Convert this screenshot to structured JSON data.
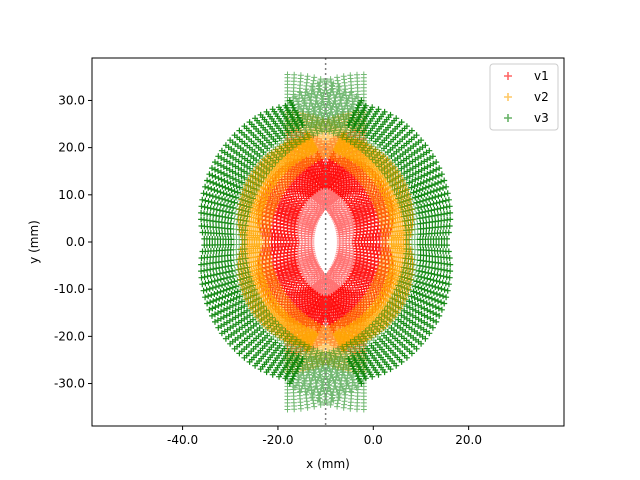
{
  "chart_data": {
    "type": "scatter",
    "title": "",
    "xlabel": "x (mm)",
    "ylabel": "y (mm)",
    "xlim": [
      -59,
      40
    ],
    "ylim": [
      -39,
      39
    ],
    "xticks": [
      -40,
      -20,
      0,
      20
    ],
    "yticks": [
      -30,
      -20,
      -10,
      0,
      10,
      20,
      30
    ],
    "xtick_labels": [
      "-40.0",
      "-20.0",
      "0.0",
      "20.0"
    ],
    "ytick_labels": [
      "-30.0",
      "-20.0",
      "-10.0",
      "0.0",
      "10.0",
      "20.0",
      "30.0"
    ],
    "grid": false,
    "legend_position": "top-right",
    "marker": "+",
    "vline": {
      "x": -10,
      "style": "dotted",
      "color": "#808080"
    },
    "series": [
      {
        "name": "v1",
        "color": "#ff0000",
        "r_inner": 11,
        "r_outer": 20,
        "center_offset": 8,
        "scallop": 3.5
      },
      {
        "name": "v2",
        "color": "#ffa500",
        "r_inner": 20,
        "r_outer": 25,
        "center_offset": 8,
        "scallop": 2.5
      },
      {
        "name": "v3",
        "color": "#008000",
        "r_inner": 25,
        "r_outer": 33,
        "center_offset": 8,
        "scallop": 2.5
      }
    ]
  }
}
